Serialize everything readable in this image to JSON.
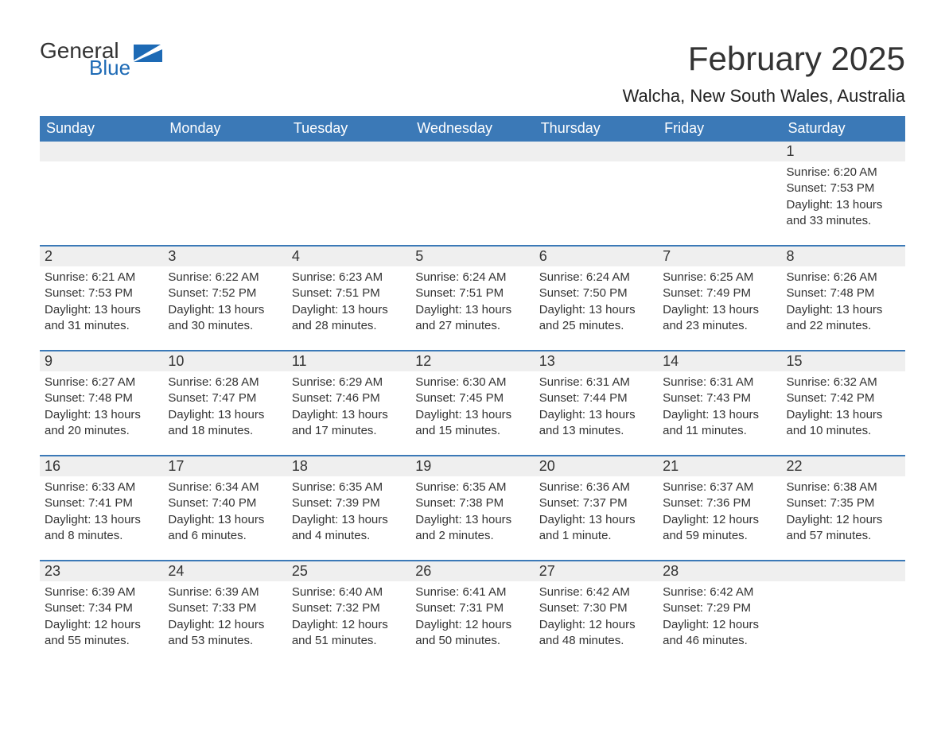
{
  "logo": {
    "word1": "General",
    "word2": "Blue"
  },
  "title": {
    "month_year": "February 2025",
    "location": "Walcha, New South Wales, Australia"
  },
  "colors": {
    "header_bg": "#3b79b7",
    "header_text": "#ffffff",
    "daynum_bg": "#efefef",
    "cell_border_top": "#3b79b7",
    "text": "#333333",
    "logo_blue": "#1d6ab5"
  },
  "day_names": [
    "Sunday",
    "Monday",
    "Tuesday",
    "Wednesday",
    "Thursday",
    "Friday",
    "Saturday"
  ],
  "weeks": [
    [
      {
        "empty": true
      },
      {
        "empty": true
      },
      {
        "empty": true
      },
      {
        "empty": true
      },
      {
        "empty": true
      },
      {
        "empty": true
      },
      {
        "n": "1",
        "sunrise": "Sunrise: 6:20 AM",
        "sunset": "Sunset: 7:53 PM",
        "daylight": "Daylight: 13 hours and 33 minutes."
      }
    ],
    [
      {
        "n": "2",
        "sunrise": "Sunrise: 6:21 AM",
        "sunset": "Sunset: 7:53 PM",
        "daylight": "Daylight: 13 hours and 31 minutes."
      },
      {
        "n": "3",
        "sunrise": "Sunrise: 6:22 AM",
        "sunset": "Sunset: 7:52 PM",
        "daylight": "Daylight: 13 hours and 30 minutes."
      },
      {
        "n": "4",
        "sunrise": "Sunrise: 6:23 AM",
        "sunset": "Sunset: 7:51 PM",
        "daylight": "Daylight: 13 hours and 28 minutes."
      },
      {
        "n": "5",
        "sunrise": "Sunrise: 6:24 AM",
        "sunset": "Sunset: 7:51 PM",
        "daylight": "Daylight: 13 hours and 27 minutes."
      },
      {
        "n": "6",
        "sunrise": "Sunrise: 6:24 AM",
        "sunset": "Sunset: 7:50 PM",
        "daylight": "Daylight: 13 hours and 25 minutes."
      },
      {
        "n": "7",
        "sunrise": "Sunrise: 6:25 AM",
        "sunset": "Sunset: 7:49 PM",
        "daylight": "Daylight: 13 hours and 23 minutes."
      },
      {
        "n": "8",
        "sunrise": "Sunrise: 6:26 AM",
        "sunset": "Sunset: 7:48 PM",
        "daylight": "Daylight: 13 hours and 22 minutes."
      }
    ],
    [
      {
        "n": "9",
        "sunrise": "Sunrise: 6:27 AM",
        "sunset": "Sunset: 7:48 PM",
        "daylight": "Daylight: 13 hours and 20 minutes."
      },
      {
        "n": "10",
        "sunrise": "Sunrise: 6:28 AM",
        "sunset": "Sunset: 7:47 PM",
        "daylight": "Daylight: 13 hours and 18 minutes."
      },
      {
        "n": "11",
        "sunrise": "Sunrise: 6:29 AM",
        "sunset": "Sunset: 7:46 PM",
        "daylight": "Daylight: 13 hours and 17 minutes."
      },
      {
        "n": "12",
        "sunrise": "Sunrise: 6:30 AM",
        "sunset": "Sunset: 7:45 PM",
        "daylight": "Daylight: 13 hours and 15 minutes."
      },
      {
        "n": "13",
        "sunrise": "Sunrise: 6:31 AM",
        "sunset": "Sunset: 7:44 PM",
        "daylight": "Daylight: 13 hours and 13 minutes."
      },
      {
        "n": "14",
        "sunrise": "Sunrise: 6:31 AM",
        "sunset": "Sunset: 7:43 PM",
        "daylight": "Daylight: 13 hours and 11 minutes."
      },
      {
        "n": "15",
        "sunrise": "Sunrise: 6:32 AM",
        "sunset": "Sunset: 7:42 PM",
        "daylight": "Daylight: 13 hours and 10 minutes."
      }
    ],
    [
      {
        "n": "16",
        "sunrise": "Sunrise: 6:33 AM",
        "sunset": "Sunset: 7:41 PM",
        "daylight": "Daylight: 13 hours and 8 minutes."
      },
      {
        "n": "17",
        "sunrise": "Sunrise: 6:34 AM",
        "sunset": "Sunset: 7:40 PM",
        "daylight": "Daylight: 13 hours and 6 minutes."
      },
      {
        "n": "18",
        "sunrise": "Sunrise: 6:35 AM",
        "sunset": "Sunset: 7:39 PM",
        "daylight": "Daylight: 13 hours and 4 minutes."
      },
      {
        "n": "19",
        "sunrise": "Sunrise: 6:35 AM",
        "sunset": "Sunset: 7:38 PM",
        "daylight": "Daylight: 13 hours and 2 minutes."
      },
      {
        "n": "20",
        "sunrise": "Sunrise: 6:36 AM",
        "sunset": "Sunset: 7:37 PM",
        "daylight": "Daylight: 13 hours and 1 minute."
      },
      {
        "n": "21",
        "sunrise": "Sunrise: 6:37 AM",
        "sunset": "Sunset: 7:36 PM",
        "daylight": "Daylight: 12 hours and 59 minutes."
      },
      {
        "n": "22",
        "sunrise": "Sunrise: 6:38 AM",
        "sunset": "Sunset: 7:35 PM",
        "daylight": "Daylight: 12 hours and 57 minutes."
      }
    ],
    [
      {
        "n": "23",
        "sunrise": "Sunrise: 6:39 AM",
        "sunset": "Sunset: 7:34 PM",
        "daylight": "Daylight: 12 hours and 55 minutes."
      },
      {
        "n": "24",
        "sunrise": "Sunrise: 6:39 AM",
        "sunset": "Sunset: 7:33 PM",
        "daylight": "Daylight: 12 hours and 53 minutes."
      },
      {
        "n": "25",
        "sunrise": "Sunrise: 6:40 AM",
        "sunset": "Sunset: 7:32 PM",
        "daylight": "Daylight: 12 hours and 51 minutes."
      },
      {
        "n": "26",
        "sunrise": "Sunrise: 6:41 AM",
        "sunset": "Sunset: 7:31 PM",
        "daylight": "Daylight: 12 hours and 50 minutes."
      },
      {
        "n": "27",
        "sunrise": "Sunrise: 6:42 AM",
        "sunset": "Sunset: 7:30 PM",
        "daylight": "Daylight: 12 hours and 48 minutes."
      },
      {
        "n": "28",
        "sunrise": "Sunrise: 6:42 AM",
        "sunset": "Sunset: 7:29 PM",
        "daylight": "Daylight: 12 hours and 46 minutes."
      },
      {
        "empty": true
      }
    ]
  ]
}
